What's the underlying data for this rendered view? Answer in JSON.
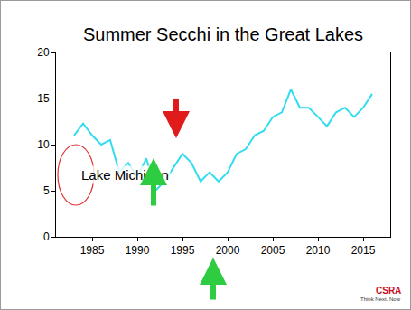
{
  "chart_data": {
    "type": "line",
    "title": "Summer Secchi in the Great Lakes",
    "annotations": [
      "Lake Michigan"
    ],
    "logo": {
      "name": "CSRA",
      "tagline": "Think Next. Now"
    },
    "x": [
      1983,
      1984,
      1985,
      1986,
      1987,
      1988,
      1989,
      1990,
      1991,
      1992,
      1993,
      1994,
      1995,
      1996,
      1997,
      1998,
      1999,
      2000,
      2001,
      2002,
      2003,
      2004,
      2005,
      2006,
      2007,
      2008,
      2009,
      2010,
      2011,
      2012,
      2013,
      2014,
      2015,
      2016
    ],
    "values": [
      11,
      12.3,
      11,
      10,
      10.5,
      7,
      8,
      6.5,
      8.5,
      5,
      6,
      7.5,
      9,
      8,
      6,
      7,
      6,
      7,
      9,
      9.5,
      11,
      11.5,
      13,
      13.5,
      16,
      14,
      14,
      13,
      12,
      13.5,
      14,
      13,
      14,
      15.5
    ],
    "color": "#33dcef",
    "xlim": [
      1981,
      2018
    ],
    "xticks": [
      1985,
      1990,
      1995,
      2000,
      2005,
      2010,
      2015
    ],
    "ylim": [
      0,
      20
    ],
    "yticks": [
      0,
      5,
      10,
      15,
      20
    ],
    "grid": false
  }
}
